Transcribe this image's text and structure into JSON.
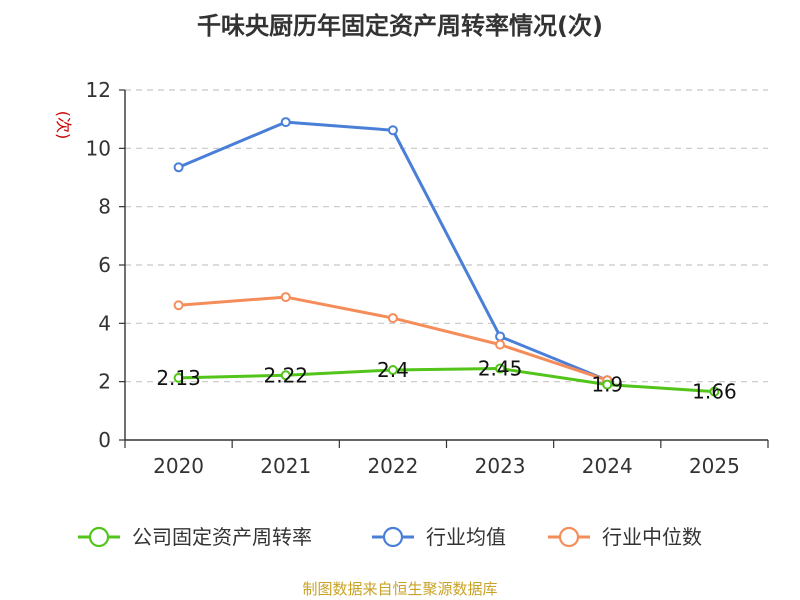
{
  "chart_data": {
    "type": "line",
    "title": "千味央厨历年固定资产周转率情况(次)",
    "ylabel": "(次)",
    "xlabel": "",
    "categories": [
      "2020",
      "2021",
      "2022",
      "2023",
      "2024",
      "2025"
    ],
    "ylim": [
      0,
      12
    ],
    "yticks": [
      0,
      2,
      4,
      6,
      8,
      10,
      12
    ],
    "grid": true,
    "legend_position": "bottom",
    "series": [
      {
        "name": "公司固定资产周转率",
        "color": "#52c41a",
        "values": [
          2.13,
          2.22,
          2.4,
          2.45,
          1.9,
          1.66
        ],
        "labels": [
          "2.13",
          "2.22",
          "2.4",
          "2.45",
          "1.9",
          "1.66"
        ]
      },
      {
        "name": "行业均值",
        "color": "#4a7fd8",
        "values": [
          9.35,
          10.9,
          10.62,
          3.55,
          2.05,
          null
        ]
      },
      {
        "name": "行业中位数",
        "color": "#f58d5a",
        "values": [
          4.62,
          4.9,
          4.18,
          3.27,
          2.05,
          null
        ]
      }
    ]
  },
  "source": "制图数据来自恒生聚源数据库"
}
